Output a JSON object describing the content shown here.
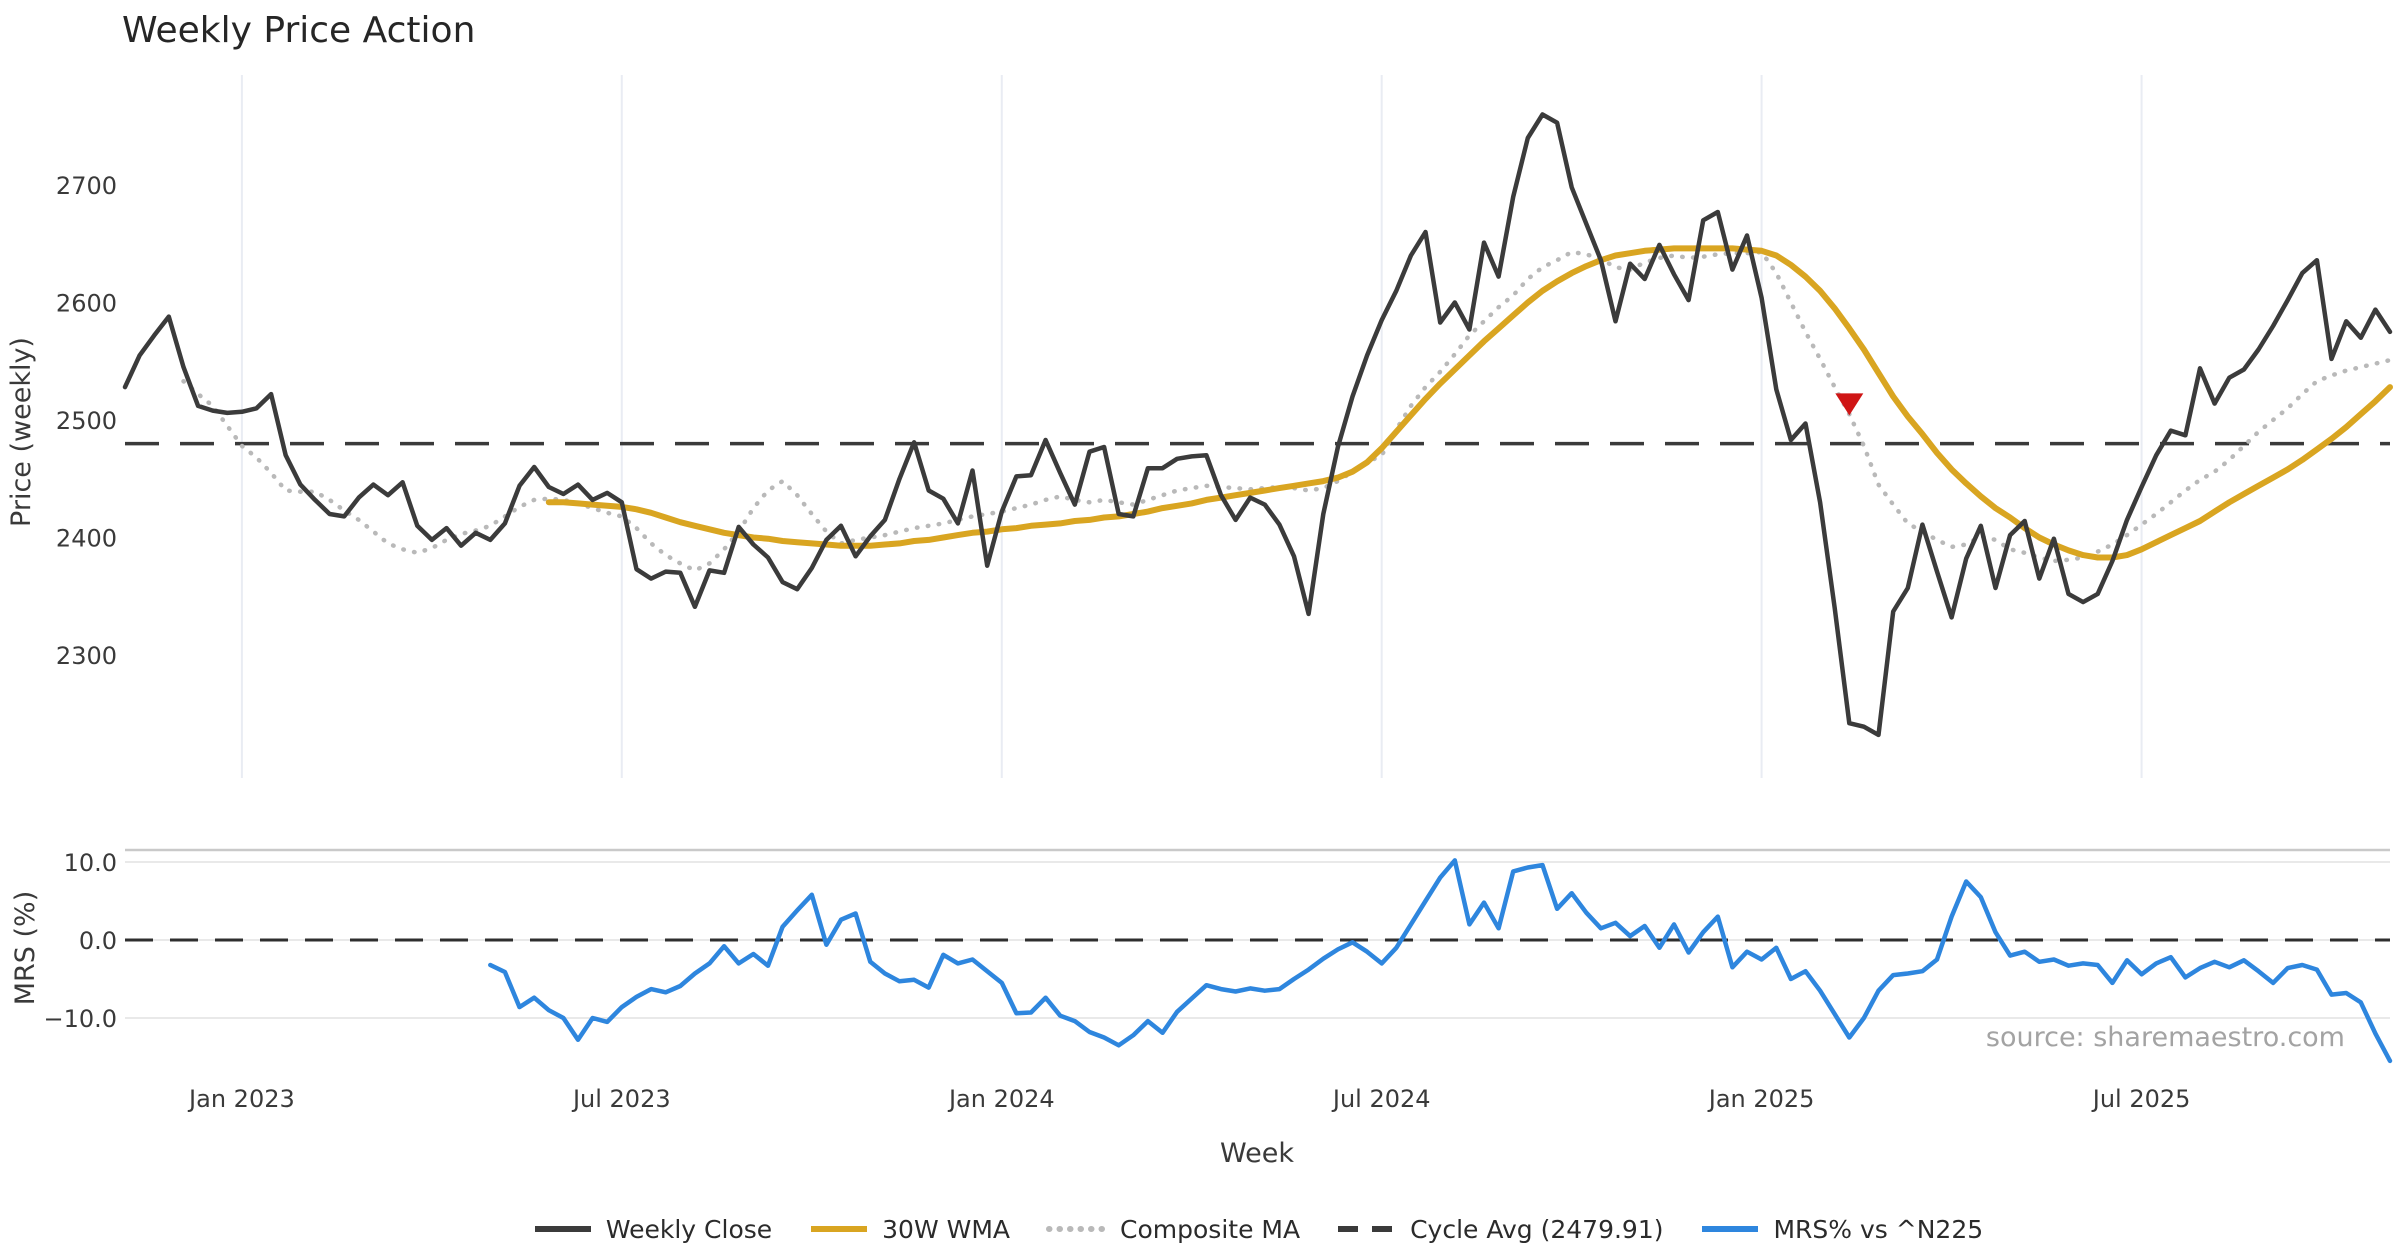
{
  "chart_data": {
    "type": "line",
    "title": "Weekly Price Action",
    "source_note": "source: sharemaestro.com",
    "x": {
      "label": "Week",
      "unit": "weekly observations",
      "total_weeks": 156,
      "ticks": [
        {
          "week": 8,
          "label": "Jan 2023"
        },
        {
          "week": 34,
          "label": "Jul 2023"
        },
        {
          "week": 60,
          "label": "Jan 2024"
        },
        {
          "week": 86,
          "label": "Jul 2024"
        },
        {
          "week": 112,
          "label": "Jan 2025"
        },
        {
          "week": 138,
          "label": "Jul 2025"
        }
      ]
    },
    "price_panel": {
      "ylabel": "Price (weekly)",
      "ylim": [
        2195,
        2795
      ],
      "grid": "vertical-only",
      "yticks": [
        {
          "value": 2300,
          "label": "2300"
        },
        {
          "value": 2400,
          "label": "2400"
        },
        {
          "value": 2500,
          "label": "2500"
        },
        {
          "value": 2600,
          "label": "2600"
        },
        {
          "value": 2700,
          "label": "2700"
        }
      ],
      "cycle_avg": {
        "value": 2479.91,
        "color": "#3a3a3a",
        "style": "dashed"
      },
      "sell_marker": {
        "week": 118,
        "value": 2515,
        "shape": "triangle-down",
        "color": "#cf1515"
      },
      "series": [
        {
          "name": "Weekly Close",
          "color": "#3b3b3b",
          "style": "solid",
          "width": 4.5,
          "start_week": 0,
          "values": [
            2528,
            2555,
            2572,
            2588,
            2545,
            2512,
            2508,
            2506,
            2507,
            2510,
            2522,
            2470,
            2445,
            2432,
            2420,
            2418,
            2434,
            2445,
            2436,
            2447,
            2410,
            2398,
            2408,
            2393,
            2404,
            2398,
            2412,
            2444,
            2460,
            2443,
            2437,
            2445,
            2432,
            2438,
            2430,
            2373,
            2365,
            2371,
            2370,
            2341,
            2372,
            2370,
            2409,
            2394,
            2383,
            2362,
            2356,
            2374,
            2398,
            2410,
            2384,
            2401,
            2415,
            2450,
            2481,
            2440,
            2433,
            2412,
            2457,
            2376,
            2422,
            2452,
            2453,
            2483,
            2455,
            2428,
            2473,
            2477,
            2420,
            2418,
            2459,
            2459,
            2467,
            2469,
            2470,
            2436,
            2415,
            2434,
            2428,
            2411,
            2384,
            2335,
            2420,
            2477,
            2520,
            2555,
            2585,
            2610,
            2640,
            2660,
            2583,
            2600,
            2577,
            2651,
            2622,
            2690,
            2740,
            2760,
            2753,
            2698,
            2667,
            2636,
            2584,
            2633,
            2620,
            2649,
            2624,
            2602,
            2670,
            2677,
            2628,
            2657,
            2604,
            2526,
            2483,
            2497,
            2430,
            2340,
            2242,
            2239,
            2232,
            2337,
            2357,
            2411,
            2371,
            2332,
            2382,
            2410,
            2357,
            2402,
            2414,
            2365,
            2399,
            2352,
            2345,
            2352,
            2380,
            2415,
            2443,
            2470,
            2491,
            2487,
            2544,
            2514,
            2536,
            2543,
            2560,
            2580,
            2602,
            2625,
            2636,
            2552,
            2584,
            2570,
            2594,
            2575
          ]
        },
        {
          "name": "30W WMA",
          "color": "#d9a521",
          "style": "solid",
          "width": 6,
          "start_week": 29,
          "values": [
            2430,
            2430,
            2429,
            2428,
            2427,
            2426,
            2424,
            2421,
            2417,
            2413,
            2410,
            2407,
            2404,
            2402,
            2400,
            2399,
            2397,
            2396,
            2395,
            2394,
            2393,
            2393,
            2393,
            2394,
            2395,
            2397,
            2398,
            2400,
            2402,
            2404,
            2405,
            2407,
            2408,
            2410,
            2411,
            2412,
            2414,
            2415,
            2417,
            2418,
            2420,
            2422,
            2425,
            2427,
            2429,
            2432,
            2434,
            2436,
            2438,
            2440,
            2442,
            2444,
            2446,
            2448,
            2451,
            2456,
            2464,
            2476,
            2490,
            2504,
            2518,
            2531,
            2543,
            2555,
            2567,
            2578,
            2589,
            2600,
            2610,
            2618,
            2625,
            2631,
            2636,
            2640,
            2642,
            2644,
            2645,
            2646,
            2646,
            2646,
            2646,
            2646,
            2645,
            2644,
            2640,
            2632,
            2622,
            2610,
            2595,
            2578,
            2560,
            2540,
            2520,
            2503,
            2488,
            2472,
            2458,
            2446,
            2435,
            2425,
            2417,
            2408,
            2400,
            2394,
            2389,
            2385,
            2383,
            2383,
            2385,
            2390,
            2396,
            2402,
            2408,
            2414,
            2422,
            2430,
            2437,
            2444,
            2451,
            2458,
            2466,
            2475,
            2484,
            2494,
            2505,
            2516,
            2528
          ]
        },
        {
          "name": "Composite MA",
          "color": "#b9b9b9",
          "style": "dotted",
          "width": 4.5,
          "start_week": 4,
          "values": [
            2533,
            2522,
            2512,
            2495,
            2478,
            2468,
            2455,
            2440,
            2439,
            2439,
            2432,
            2423,
            2415,
            2405,
            2395,
            2390,
            2387,
            2391,
            2398,
            2403,
            2406,
            2410,
            2418,
            2426,
            2432,
            2433,
            2432,
            2429,
            2425,
            2421,
            2418,
            2408,
            2395,
            2385,
            2378,
            2372,
            2378,
            2390,
            2405,
            2425,
            2440,
            2448,
            2436,
            2420,
            2405,
            2395,
            2398,
            2400,
            2402,
            2405,
            2408,
            2410,
            2412,
            2415,
            2418,
            2420,
            2422,
            2425,
            2428,
            2432,
            2435,
            2432,
            2430,
            2432,
            2430,
            2428,
            2432,
            2436,
            2440,
            2442,
            2444,
            2443,
            2442,
            2441,
            2442,
            2443,
            2442,
            2440,
            2442,
            2448,
            2456,
            2464,
            2470,
            2492,
            2512,
            2528,
            2541,
            2556,
            2572,
            2584,
            2596,
            2606,
            2620,
            2630,
            2636,
            2643,
            2641,
            2637,
            2630,
            2628,
            2634,
            2638,
            2640,
            2638,
            2639,
            2641,
            2642,
            2642,
            2643,
            2625,
            2600,
            2575,
            2552,
            2528,
            2505,
            2478,
            2445,
            2428,
            2412,
            2405,
            2398,
            2392,
            2394,
            2401,
            2398,
            2390,
            2387,
            2383,
            2380,
            2381,
            2383,
            2388,
            2394,
            2402,
            2411,
            2420,
            2430,
            2440,
            2449,
            2456,
            2466,
            2478,
            2490,
            2500,
            2510,
            2522,
            2533,
            2538,
            2542,
            2545,
            2548,
            2551
          ]
        }
      ]
    },
    "mrs_panel": {
      "ylabel": "MRS (%)",
      "ylim": [
        -17.3,
        11.5
      ],
      "yticks": [
        {
          "value": 10,
          "label": "10.0"
        },
        {
          "value": 0,
          "label": "0.0"
        },
        {
          "value": -10,
          "label": "−10.0"
        }
      ],
      "zero_line": {
        "value": 0,
        "color": "#2f2f2f",
        "style": "dashed"
      },
      "series": [
        {
          "name": "MRS% vs ^N225",
          "color": "#2e86de",
          "style": "solid",
          "width": 4.5,
          "start_week": 25,
          "values": [
            -3.2,
            -4.1,
            -8.6,
            -7.4,
            -9.0,
            -10.0,
            -12.8,
            -10.0,
            -10.5,
            -8.6,
            -7.3,
            -6.3,
            -6.7,
            -5.9,
            -4.3,
            -3.0,
            -0.8,
            -3.0,
            -1.8,
            -3.3,
            1.7,
            3.8,
            5.8,
            -0.6,
            2.6,
            3.4,
            -2.8,
            -4.3,
            -5.3,
            -5.1,
            -6.1,
            -1.9,
            -3.0,
            -2.5,
            -4.0,
            -5.5,
            -9.4,
            -9.3,
            -7.4,
            -9.7,
            -10.4,
            -11.8,
            -12.5,
            -13.5,
            -12.2,
            -10.4,
            -11.9,
            -9.2,
            -7.5,
            -5.8,
            -6.3,
            -6.6,
            -6.2,
            -6.5,
            -6.3,
            -5.0,
            -3.8,
            -2.4,
            -1.2,
            -0.3,
            -1.5,
            -3.0,
            -1.0,
            2.0,
            5.0,
            8.0,
            10.2,
            2.0,
            4.8,
            1.5,
            8.8,
            9.3,
            9.6,
            4.0,
            6.0,
            3.5,
            1.5,
            2.2,
            0.5,
            1.8,
            -1.0,
            2.0,
            -1.6,
            1.0,
            3.0,
            -3.5,
            -1.5,
            -2.5,
            -1.0,
            -5.0,
            -4.0,
            -6.5,
            -9.5,
            -12.5,
            -10.0,
            -6.5,
            -4.5,
            -4.3,
            -4.0,
            -2.5,
            3.0,
            7.5,
            5.5,
            1.0,
            -2.0,
            -1.5,
            -2.8,
            -2.5,
            -3.3,
            -3.0,
            -3.2,
            -5.5,
            -2.6,
            -4.4,
            -3.0,
            -2.2,
            -4.8,
            -3.6,
            -2.8,
            -3.5,
            -2.6,
            -4.0,
            -5.5,
            -3.6,
            -3.2,
            -3.8,
            -7.0,
            -6.8,
            -8.0,
            -12.0,
            -15.5
          ]
        }
      ]
    },
    "legend": [
      {
        "label": "Weekly Close",
        "color": "#3b3b3b",
        "style": "solid"
      },
      {
        "label": "30W WMA",
        "color": "#d9a521",
        "style": "solid"
      },
      {
        "label": "Composite MA",
        "color": "#b9b9b9",
        "style": "dotted"
      },
      {
        "label": "Cycle Avg (2479.91)",
        "color": "#3a3a3a",
        "style": "dashed"
      },
      {
        "label": "MRS% vs ^N225",
        "color": "#2e86de",
        "style": "solid"
      }
    ],
    "layout_hints": {
      "legend_position": "bottom-center",
      "grid_color_vertical": "#e9ecf3",
      "grid_color_horizontal": "#e9e9e9",
      "panel_top_border_color": "#c9c9c9",
      "background": "#ffffff"
    }
  }
}
